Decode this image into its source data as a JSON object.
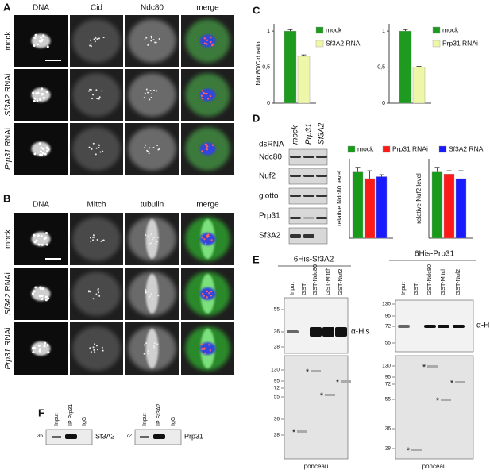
{
  "figure": {
    "panel_a": {
      "label": "A",
      "columns": [
        "DNA",
        "Cid",
        "Ndc80",
        "merge"
      ],
      "rows": [
        {
          "text": "mock"
        },
        {
          "italic": "Sf3A2",
          "text": "RNAi"
        },
        {
          "italic": "Prp31",
          "text": "RNAi"
        }
      ]
    },
    "panel_b": {
      "label": "B",
      "columns": [
        "DNA",
        "Mitch",
        "tubulin",
        "merge"
      ],
      "rows": [
        {
          "text": "mock"
        },
        {
          "italic": "Sf3A2",
          "text": "RNAi"
        },
        {
          "italic": "Prp31",
          "text": "RNAi"
        }
      ]
    },
    "panel_c": {
      "label": "C"
    },
    "panel_d": {
      "label": "D",
      "blot": {
        "header": "dsRNA",
        "lanes": [
          "mock",
          "Prp31",
          "Sf3A2"
        ],
        "rows": [
          "Ndc80",
          "Nuf2",
          "giotto",
          "Prp31",
          "Sf3A2"
        ]
      }
    },
    "panel_e": {
      "label": "E",
      "star": "*",
      "blots": [
        {
          "title": "6His-Sf3A2",
          "lanes": [
            "Input",
            "GST",
            "GST-Ndc80",
            "GST-Mitch",
            "GST-Nuf2"
          ],
          "antibody": "α-His",
          "stain": "ponceau",
          "top_markers": [
            55,
            36,
            28
          ],
          "bottom_markers": [
            130,
            95,
            72,
            55,
            36,
            28
          ]
        },
        {
          "title": "6His-Prp31",
          "lanes": [
            "Input",
            "GST",
            "GST-Ndc80",
            "GST-Mitch",
            "GST-Nuf2"
          ],
          "antibody": "α-His",
          "stain": "ponceau",
          "top_markers": [
            130,
            95,
            72,
            55
          ],
          "bottom_markers": [
            130,
            95,
            72,
            55,
            36,
            28
          ]
        }
      ]
    },
    "panel_f": {
      "label": "F",
      "blots": [
        {
          "lanes": [
            "Input",
            "IP Prp31",
            "IgG"
          ],
          "marker": 36,
          "target": "Sf3A2"
        },
        {
          "lanes": [
            "Input",
            "IP Sf3A2",
            "IgG"
          ],
          "marker": 72,
          "target": "Prp31"
        }
      ]
    }
  },
  "chart_data": [
    {
      "type": "bar",
      "ylabel": "Ndc80/Cid ratio",
      "ylim": [
        0,
        1.1
      ],
      "yticks": [
        0,
        {
          "value": 0.5,
          "label": "0,5"
        },
        1
      ],
      "series": [
        {
          "name": "mock",
          "color": "#1e9a1e",
          "values": [
            1
          ],
          "errors": [
            0.02
          ]
        },
        {
          "name": "Sf3A2 RNAi",
          "color": "#eef7a8",
          "values": [
            0.65
          ],
          "errors": [
            0.02
          ]
        }
      ]
    },
    {
      "type": "bar",
      "ylim": [
        0,
        1.1
      ],
      "yticks": [
        0,
        {
          "value": 0.5,
          "label": "0,5"
        },
        1
      ],
      "series": [
        {
          "name": "mock",
          "color": "#1e9a1e",
          "values": [
            1
          ],
          "errors": [
            0.02
          ]
        },
        {
          "name": "Prp31 RNAi",
          "color": "#eef7a8",
          "values": [
            0.5
          ],
          "errors": [
            0.01
          ]
        }
      ]
    },
    {
      "type": "bar",
      "ylabel": "relative Ndc80 level",
      "ylim": [
        0,
        1.2
      ],
      "series": [
        {
          "name": "mock",
          "color": "#1a9a1a",
          "values": [
            1
          ],
          "errors": [
            0.07
          ]
        },
        {
          "name": "Prp31 RNAi",
          "color": "#ff1a1a",
          "values": [
            0.9
          ],
          "errors": [
            0.12
          ]
        },
        {
          "name": "Sf3A2 RNAi",
          "color": "#1a1aff",
          "values": [
            0.93
          ],
          "errors": [
            0.03
          ]
        }
      ]
    },
    {
      "type": "bar",
      "ylabel": "relative Nuf2 level",
      "ylim": [
        0,
        1.2
      ],
      "series": [
        {
          "color": "#1a9a1a",
          "values": [
            1
          ],
          "errors": [
            0.07
          ]
        },
        {
          "color": "#ff1a1a",
          "values": [
            0.97
          ],
          "errors": [
            0.05
          ]
        },
        {
          "color": "#1a1aff",
          "values": [
            0.9
          ],
          "errors": [
            0.12
          ]
        }
      ]
    }
  ]
}
